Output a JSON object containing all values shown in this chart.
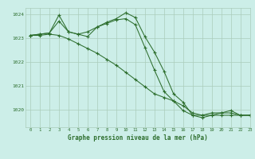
{
  "bg_color": "#cceee8",
  "grid_color": "#aaccbb",
  "line_color": "#2d6e2d",
  "marker": "+",
  "xlabel": "Graphe pression niveau de la mer (hPa)",
  "ylim": [
    1019.25,
    1024.25
  ],
  "xlim": [
    -0.5,
    23
  ],
  "yticks": [
    1020,
    1021,
    1022,
    1023,
    1024
  ],
  "xticks": [
    0,
    1,
    2,
    3,
    4,
    5,
    6,
    7,
    8,
    9,
    10,
    11,
    12,
    13,
    14,
    15,
    16,
    17,
    18,
    19,
    20,
    21,
    22,
    23
  ],
  "series": [
    [
      1023.1,
      1023.1,
      1023.15,
      1023.1,
      1022.95,
      1022.75,
      1022.55,
      1022.35,
      1022.1,
      1021.85,
      1021.55,
      1021.25,
      1020.95,
      1020.65,
      1020.5,
      1020.35,
      1020.15,
      1019.85,
      1019.75,
      1019.75,
      1019.75,
      1019.75,
      1019.75,
      1019.75
    ],
    [
      1023.1,
      1023.15,
      1023.2,
      1023.7,
      1023.25,
      1023.15,
      1023.25,
      1023.45,
      1023.6,
      1023.75,
      1023.8,
      1023.55,
      1022.6,
      1021.65,
      1020.75,
      1020.35,
      1019.95,
      1019.75,
      1019.75,
      1019.85,
      1019.85,
      1019.85,
      1019.75,
      1019.75
    ],
    [
      1023.1,
      1023.15,
      1023.2,
      1023.95,
      1023.25,
      1023.15,
      1023.05,
      1023.45,
      1023.65,
      1023.8,
      1024.05,
      1023.85,
      1023.05,
      1022.4,
      1021.6,
      1020.65,
      1020.3,
      1019.75,
      1019.65,
      1019.75,
      1019.85,
      1019.95,
      1019.75,
      1019.75
    ]
  ]
}
